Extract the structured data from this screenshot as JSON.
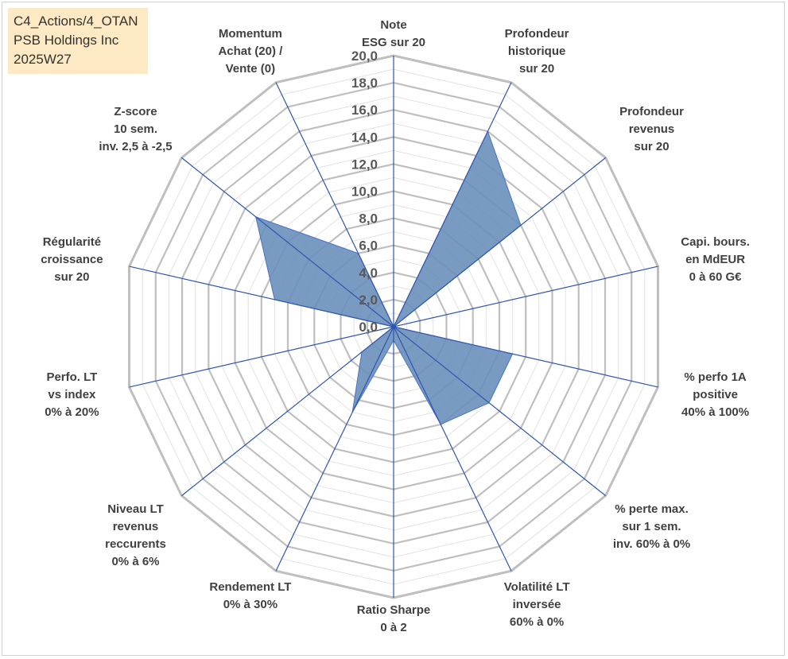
{
  "info_box": {
    "line1": "C4_Actions/4_OTAN",
    "line2": "PSB Holdings Inc",
    "line3": "2025W27"
  },
  "colors": {
    "area_fill": "#6a8fba",
    "area_stroke": "#4a72c4",
    "spoke": "#2f55b0",
    "grid_major": "#bfbfbf",
    "grid_minor": "#e2e2e2",
    "info_box_bg": "#fde9c3"
  },
  "chart_data": {
    "type": "radar",
    "title": "",
    "rmin": 0,
    "rmax": 20,
    "tick_step": 2,
    "tick_labels": [
      "0,0",
      "2,0",
      "4,0",
      "6,0",
      "8,0",
      "10,0",
      "12,0",
      "14,0",
      "16,0",
      "18,0",
      "20,0"
    ],
    "axes": [
      {
        "lines": [
          "Note",
          "ESG sur 20"
        ]
      },
      {
        "lines": [
          "Profondeur",
          "historique",
          "sur 20"
        ]
      },
      {
        "lines": [
          "Profondeur",
          "revenus",
          "sur 20"
        ]
      },
      {
        "lines": [
          "Capi. bours.",
          "en MdEUR",
          "0 à 60 G€"
        ]
      },
      {
        "lines": [
          "% perfo 1A",
          "positive",
          "40% à 100%"
        ]
      },
      {
        "lines": [
          "% perte max.",
          "sur 1 sem.",
          "inv. 60% à 0%"
        ]
      },
      {
        "lines": [
          "Volatilité LT",
          "inversée",
          "60% à 0%"
        ]
      },
      {
        "lines": [
          "Ratio Sharpe",
          "0 à 2"
        ]
      },
      {
        "lines": [
          "Rendement LT",
          "0% à 30%"
        ]
      },
      {
        "lines": [
          "Niveau LT",
          "revenus",
          "reccurents",
          "0% à 6%"
        ]
      },
      {
        "lines": [
          "Perfo. LT",
          "vs index",
          "0% à 20%"
        ]
      },
      {
        "lines": [
          "Régularité",
          "croissance",
          "sur 20"
        ]
      },
      {
        "lines": [
          "Z-score",
          "10 sem.",
          "inv. 2,5 à -2,5"
        ]
      },
      {
        "lines": [
          "Momentum",
          "Achat (20) /",
          "Vente (0)"
        ]
      }
    ],
    "series": [
      {
        "values": [
          0,
          16,
          12,
          0,
          9,
          9,
          8,
          1,
          7,
          3,
          0,
          9,
          13,
          6
        ]
      }
    ]
  }
}
